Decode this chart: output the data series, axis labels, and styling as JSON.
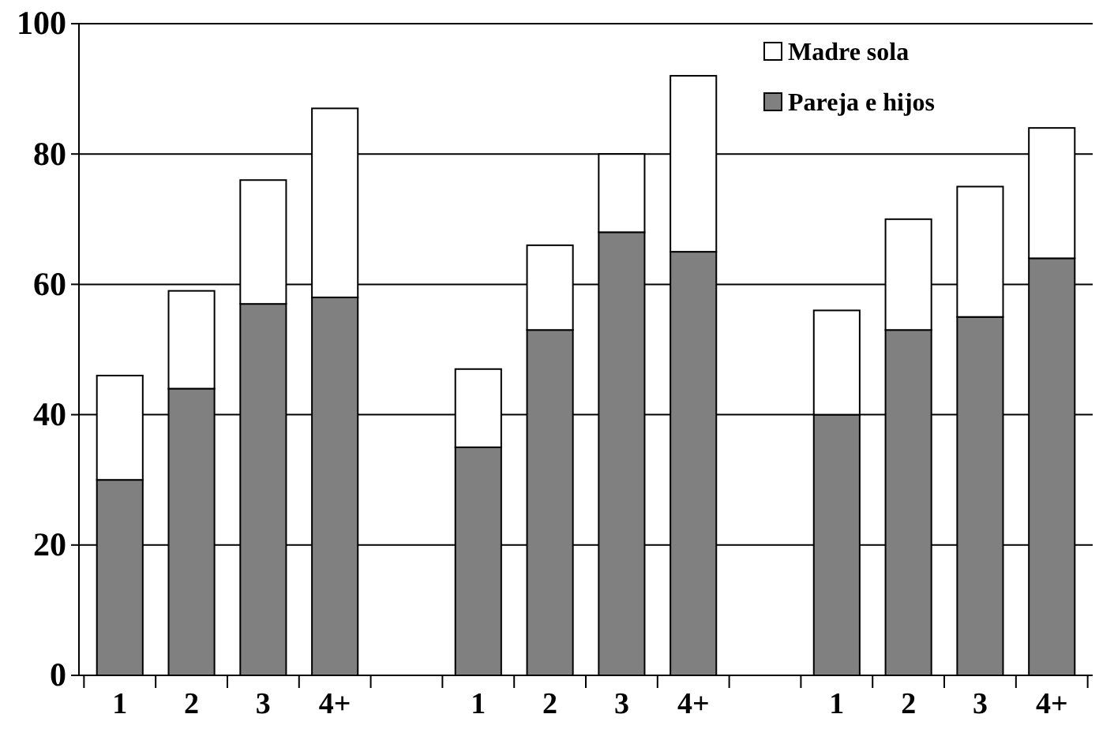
{
  "chart_data": {
    "type": "bar",
    "stacked": true,
    "categories": [
      "1",
      "2",
      "3",
      "4+",
      null,
      "1",
      "2",
      "3",
      "4+",
      null,
      "1",
      "2",
      "3",
      "4+"
    ],
    "series": [
      {
        "name": "Pareja e hijos",
        "color": "#808080",
        "values": [
          30,
          44,
          57,
          58,
          null,
          35,
          53,
          68,
          65,
          null,
          40,
          53,
          55,
          64
        ]
      },
      {
        "name": "Madre sola",
        "color": "#ffffff",
        "values": [
          16,
          15,
          19,
          29,
          null,
          12,
          13,
          12,
          27,
          null,
          16,
          17,
          20,
          20
        ]
      }
    ],
    "ylim": [
      0,
      100
    ],
    "yticks": [
      0,
      20,
      40,
      60,
      80,
      100
    ],
    "grid": "y",
    "legend": "top right"
  }
}
